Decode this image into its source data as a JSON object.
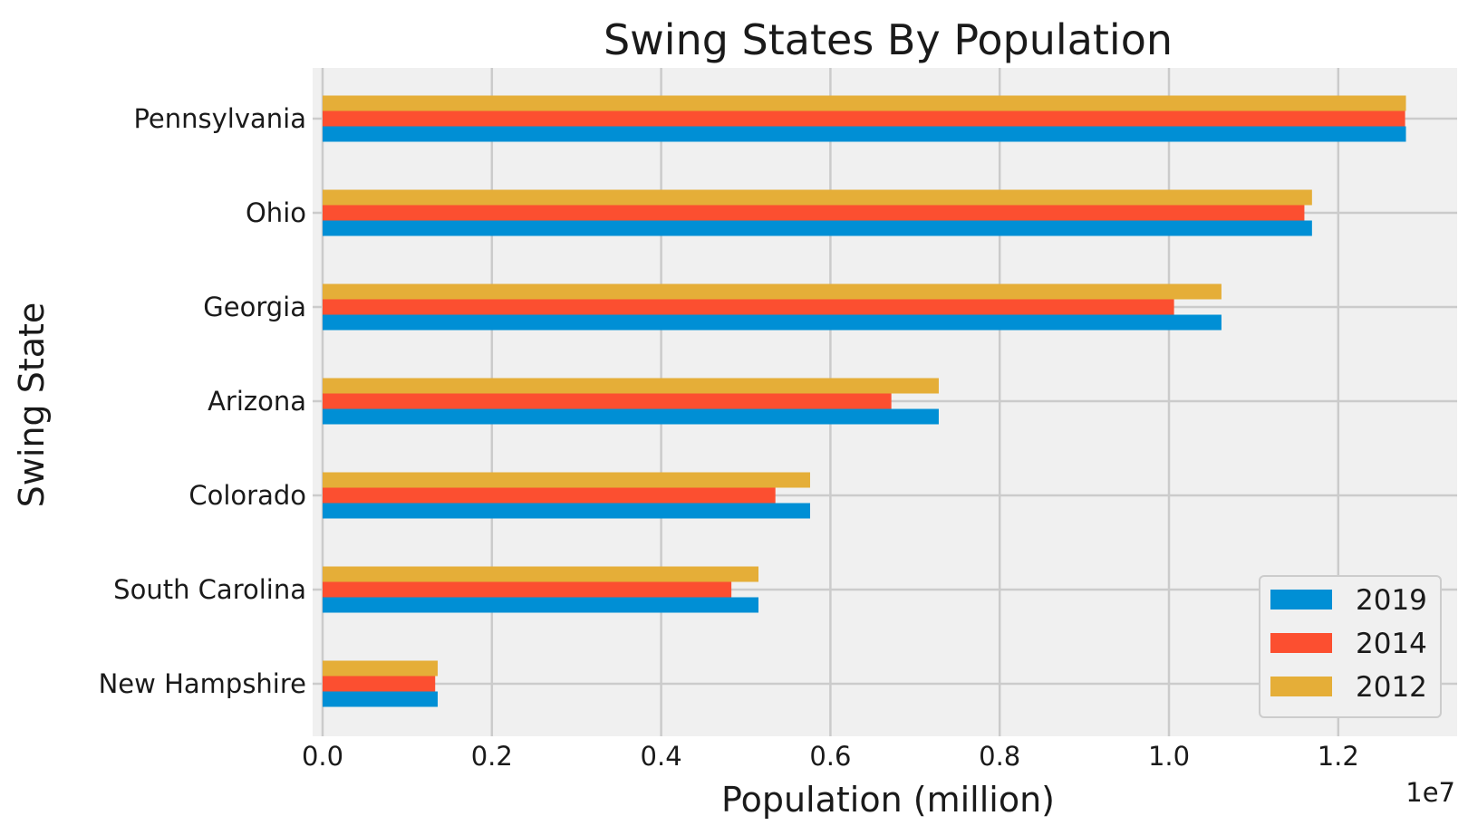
{
  "chart_data": {
    "type": "bar",
    "orientation": "horizontal",
    "title": "Swing States By Population",
    "xlabel": "Population (million)",
    "ylabel": "Swing State",
    "x_offset_label": "1e7",
    "xlim": [
      0,
      13350000
    ],
    "xticks": [
      0,
      2000000,
      4000000,
      6000000,
      8000000,
      10000000,
      12000000
    ],
    "xtick_labels": [
      "0.0",
      "0.2",
      "0.4",
      "0.6",
      "0.8",
      "1.0",
      "1.2"
    ],
    "grid": true,
    "legend_position": "lower-right",
    "categories": [
      "Pennsylvania",
      "Ohio",
      "Georgia",
      "Arizona",
      "Colorado",
      "South Carolina",
      "New Hampshire"
    ],
    "series": [
      {
        "name": "2019",
        "color": "#008fd5",
        "values": [
          12800000,
          11690000,
          10620000,
          7280000,
          5760000,
          5150000,
          1360000
        ]
      },
      {
        "name": "2014",
        "color": "#fc4f30",
        "values": [
          12790000,
          11600000,
          10060000,
          6720000,
          5350000,
          4830000,
          1330000
        ]
      },
      {
        "name": "2012",
        "color": "#e5ae38",
        "values": [
          12800000,
          11690000,
          10620000,
          7280000,
          5760000,
          5150000,
          1360000
        ]
      }
    ]
  }
}
